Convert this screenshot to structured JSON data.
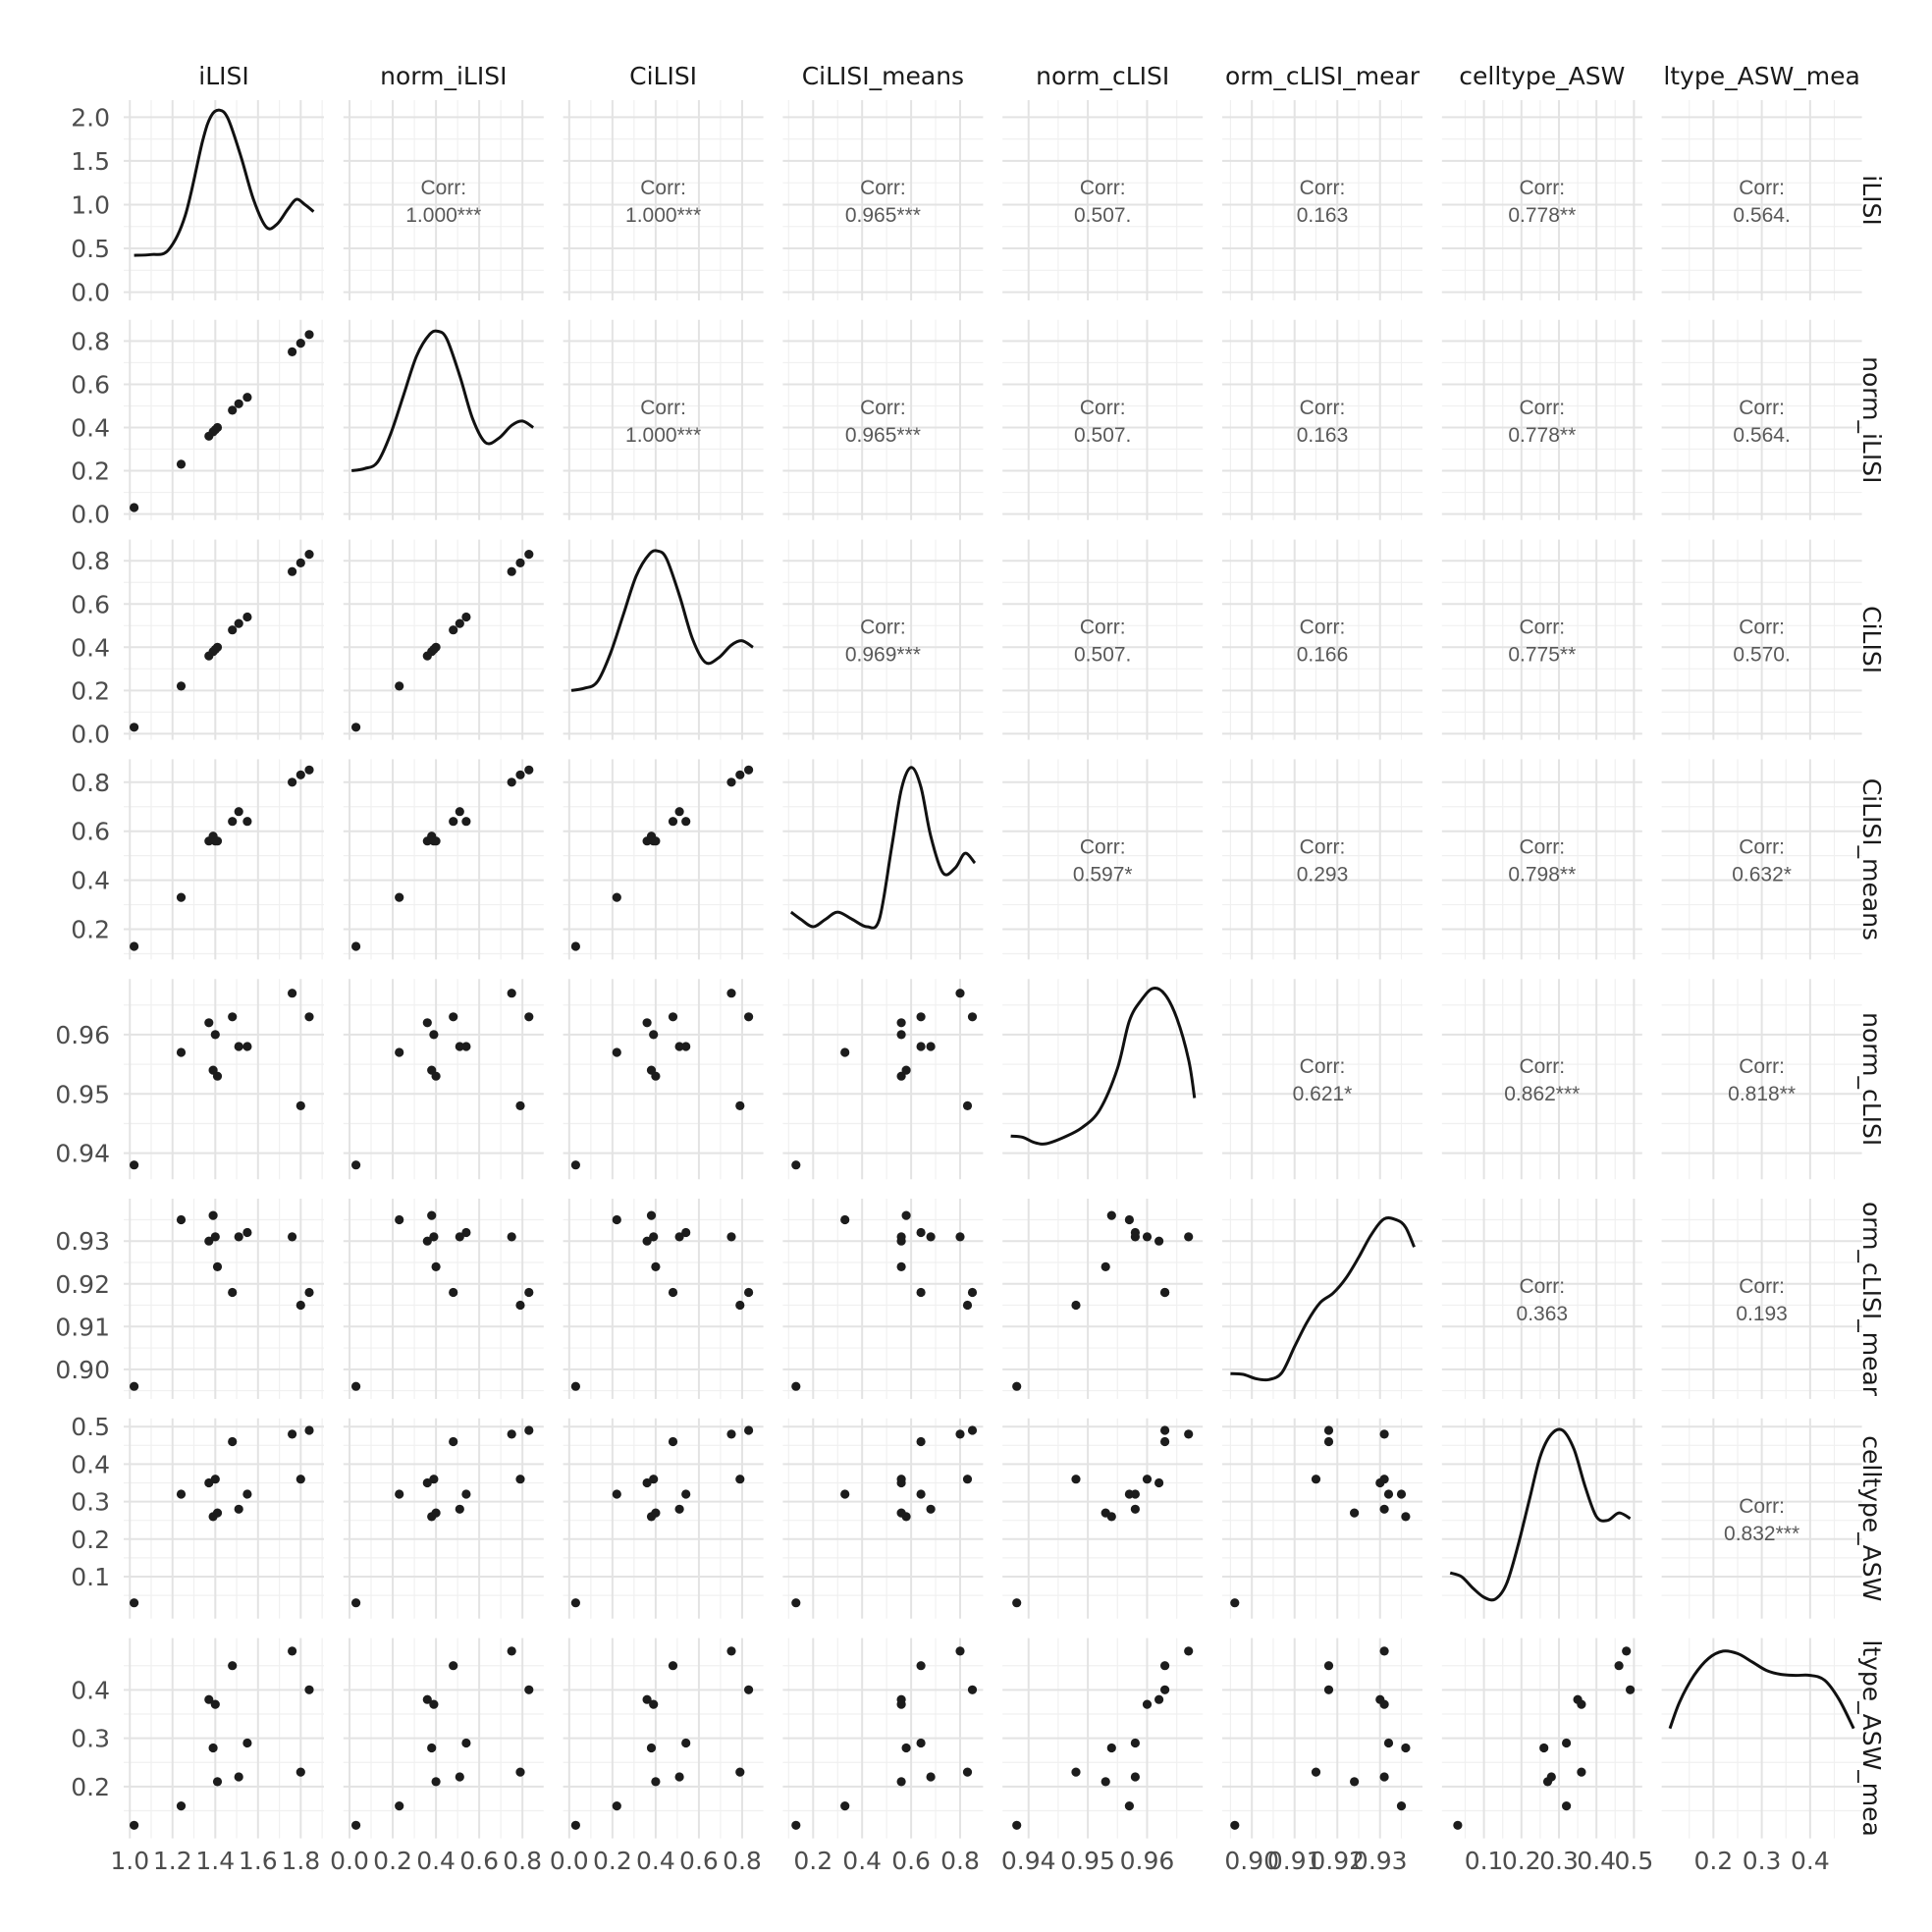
{
  "chart_data": {
    "type": "scatter",
    "variables": [
      "iLISI",
      "norm_iLISI",
      "CiLISI",
      "CiLISI_means",
      "norm_cLISI",
      "norm_cLISI_means",
      "celltype_ASW",
      "celltype_ASW_means"
    ],
    "column_strip_labels": [
      "iLISI",
      "norm_iLISI",
      "CiLISI",
      "CiLISI_means",
      "norm_cLISI",
      "orm_cLISI_mear",
      "celltype_ASW",
      "ltype_ASW_mea"
    ],
    "row_strip_labels": [
      "iLISI",
      "norm_iLISI",
      "CiLISI",
      "CiLISI_means",
      "norm_cLISI",
      "orm_cLISI_mear",
      "celltype_ASW",
      "ltype_ASW_mea"
    ],
    "x_ranges": [
      [
        1.01,
        1.87
      ],
      [
        0.01,
        0.86
      ],
      [
        0.01,
        0.86
      ],
      [
        0.11,
        0.86
      ],
      [
        0.937,
        0.968
      ],
      [
        0.895,
        0.938
      ],
      [
        0.01,
        0.5
      ],
      [
        0.11,
        0.49
      ]
    ],
    "y_ranges": [
      [
        0,
        2.1
      ],
      [
        0.01,
        0.86
      ],
      [
        0.01,
        0.86
      ],
      [
        0.11,
        0.86
      ],
      [
        0.937,
        0.968
      ],
      [
        0.895,
        0.938
      ],
      [
        0.01,
        0.5
      ],
      [
        0.11,
        0.49
      ]
    ],
    "x_tick_labels": [
      [
        [
          1.0,
          "1.0"
        ],
        [
          1.2,
          "1.2"
        ],
        [
          1.4,
          "1.4"
        ],
        [
          1.6,
          "1.6"
        ],
        [
          1.8,
          "1.8"
        ]
      ],
      [
        [
          0.0,
          "0.0"
        ],
        [
          0.2,
          "0.2"
        ],
        [
          0.4,
          "0.4"
        ],
        [
          0.6,
          "0.6"
        ],
        [
          0.8,
          "0.8"
        ]
      ],
      [
        [
          0.0,
          "0.0"
        ],
        [
          0.2,
          "0.2"
        ],
        [
          0.4,
          "0.4"
        ],
        [
          0.6,
          "0.6"
        ],
        [
          0.8,
          "0.8"
        ]
      ],
      [
        [
          0.2,
          "0.2"
        ],
        [
          0.4,
          "0.4"
        ],
        [
          0.6,
          "0.6"
        ],
        [
          0.8,
          "0.8"
        ]
      ],
      [
        [
          0.94,
          "0.94"
        ],
        [
          0.95,
          "0.95"
        ],
        [
          0.96,
          "0.96"
        ]
      ],
      [
        [
          0.9,
          "0.90"
        ],
        [
          0.91,
          "0.91"
        ],
        [
          0.92,
          "0.92"
        ],
        [
          0.93,
          "0.93"
        ]
      ],
      [
        [
          0.1,
          "0.1"
        ],
        [
          0.2,
          "0.2"
        ],
        [
          0.3,
          "0.3"
        ],
        [
          0.4,
          "0.4"
        ],
        [
          0.5,
          "0.5"
        ]
      ],
      [
        [
          0.2,
          "0.2"
        ],
        [
          0.3,
          "0.3"
        ],
        [
          0.4,
          "0.4"
        ]
      ]
    ],
    "y_tick_labels": [
      [
        [
          0.0,
          "0.0"
        ],
        [
          0.5,
          "0.5"
        ],
        [
          1.0,
          "1.0"
        ],
        [
          1.5,
          "1.5"
        ],
        [
          2.0,
          "2.0"
        ]
      ],
      [
        [
          0.0,
          "0.0"
        ],
        [
          0.2,
          "0.2"
        ],
        [
          0.4,
          "0.4"
        ],
        [
          0.6,
          "0.6"
        ],
        [
          0.8,
          "0.8"
        ]
      ],
      [
        [
          0.0,
          "0.0"
        ],
        [
          0.2,
          "0.2"
        ],
        [
          0.4,
          "0.4"
        ],
        [
          0.6,
          "0.6"
        ],
        [
          0.8,
          "0.8"
        ]
      ],
      [
        [
          0.2,
          "0.2"
        ],
        [
          0.4,
          "0.4"
        ],
        [
          0.6,
          "0.6"
        ],
        [
          0.8,
          "0.8"
        ]
      ],
      [
        [
          0.94,
          "0.94"
        ],
        [
          0.95,
          "0.95"
        ],
        [
          0.96,
          "0.96"
        ]
      ],
      [
        [
          0.9,
          "0.90"
        ],
        [
          0.91,
          "0.91"
        ],
        [
          0.92,
          "0.92"
        ],
        [
          0.93,
          "0.93"
        ]
      ],
      [
        [
          0.1,
          "0.1"
        ],
        [
          0.2,
          "0.2"
        ],
        [
          0.3,
          "0.3"
        ],
        [
          0.4,
          "0.4"
        ],
        [
          0.5,
          "0.5"
        ]
      ],
      [
        [
          0.2,
          "0.2"
        ],
        [
          0.3,
          "0.3"
        ],
        [
          0.4,
          "0.4"
        ]
      ]
    ],
    "observations": [
      [
        1.02,
        0.03,
        0.03,
        0.13,
        0.938,
        0.896,
        0.03,
        0.12
      ],
      [
        1.24,
        0.23,
        0.22,
        0.33,
        0.957,
        0.935,
        0.32,
        0.16
      ],
      [
        1.37,
        0.36,
        0.36,
        0.56,
        0.962,
        0.93,
        0.35,
        0.38
      ],
      [
        1.39,
        0.38,
        0.38,
        0.58,
        0.954,
        0.936,
        0.26,
        0.28
      ],
      [
        1.4,
        0.39,
        0.39,
        0.56,
        0.96,
        0.931,
        0.36,
        0.37
      ],
      [
        1.41,
        0.4,
        0.4,
        0.56,
        0.953,
        0.924,
        0.27,
        0.21
      ],
      [
        1.48,
        0.48,
        0.48,
        0.64,
        0.963,
        0.918,
        0.46,
        0.45
      ],
      [
        1.51,
        0.51,
        0.51,
        0.68,
        0.958,
        0.931,
        0.28,
        0.22
      ],
      [
        1.55,
        0.54,
        0.54,
        0.64,
        0.958,
        0.932,
        0.32,
        0.29
      ],
      [
        1.76,
        0.75,
        0.75,
        0.8,
        0.967,
        0.931,
        0.48,
        0.48
      ],
      [
        1.8,
        0.79,
        0.79,
        0.83,
        0.948,
        0.915,
        0.36,
        0.23
      ],
      [
        1.84,
        0.83,
        0.83,
        0.85,
        0.963,
        0.918,
        0.49,
        0.4
      ]
    ],
    "correlations": [
      {
        "row": 0,
        "col": 1,
        "label": "Corr:",
        "value": "1.000***"
      },
      {
        "row": 0,
        "col": 2,
        "label": "Corr:",
        "value": "1.000***"
      },
      {
        "row": 0,
        "col": 3,
        "label": "Corr:",
        "value": "0.965***"
      },
      {
        "row": 0,
        "col": 4,
        "label": "Corr:",
        "value": "0.507."
      },
      {
        "row": 0,
        "col": 5,
        "label": "Corr:",
        "value": "0.163"
      },
      {
        "row": 0,
        "col": 6,
        "label": "Corr:",
        "value": "0.778**"
      },
      {
        "row": 0,
        "col": 7,
        "label": "Corr:",
        "value": "0.564."
      },
      {
        "row": 1,
        "col": 2,
        "label": "Corr:",
        "value": "1.000***"
      },
      {
        "row": 1,
        "col": 3,
        "label": "Corr:",
        "value": "0.965***"
      },
      {
        "row": 1,
        "col": 4,
        "label": "Corr:",
        "value": "0.507."
      },
      {
        "row": 1,
        "col": 5,
        "label": "Corr:",
        "value": "0.163"
      },
      {
        "row": 1,
        "col": 6,
        "label": "Corr:",
        "value": "0.778**"
      },
      {
        "row": 1,
        "col": 7,
        "label": "Corr:",
        "value": "0.564."
      },
      {
        "row": 2,
        "col": 3,
        "label": "Corr:",
        "value": "0.969***"
      },
      {
        "row": 2,
        "col": 4,
        "label": "Corr:",
        "value": "0.507."
      },
      {
        "row": 2,
        "col": 5,
        "label": "Corr:",
        "value": "0.166"
      },
      {
        "row": 2,
        "col": 6,
        "label": "Corr:",
        "value": "0.775**"
      },
      {
        "row": 2,
        "col": 7,
        "label": "Corr:",
        "value": "0.570."
      },
      {
        "row": 3,
        "col": 4,
        "label": "Corr:",
        "value": "0.597*"
      },
      {
        "row": 3,
        "col": 5,
        "label": "Corr:",
        "value": "0.293"
      },
      {
        "row": 3,
        "col": 6,
        "label": "Corr:",
        "value": "0.798**"
      },
      {
        "row": 3,
        "col": 7,
        "label": "Corr:",
        "value": "0.632*"
      },
      {
        "row": 4,
        "col": 5,
        "label": "Corr:",
        "value": "0.621*"
      },
      {
        "row": 4,
        "col": 6,
        "label": "Corr:",
        "value": "0.862***"
      },
      {
        "row": 4,
        "col": 7,
        "label": "Corr:",
        "value": "0.818**"
      },
      {
        "row": 5,
        "col": 6,
        "label": "Corr:",
        "value": "0.363"
      },
      {
        "row": 5,
        "col": 7,
        "label": "Corr:",
        "value": "0.193"
      },
      {
        "row": 6,
        "col": 7,
        "label": "Corr:",
        "value": "0.832***"
      }
    ],
    "densities": [
      {
        "x": [
          1.02,
          1.1,
          1.18,
          1.26,
          1.34,
          1.38,
          1.42,
          1.46,
          1.52,
          1.58,
          1.64,
          1.69,
          1.74,
          1.78,
          1.82,
          1.86
        ],
        "y": [
          0.42,
          0.43,
          0.48,
          0.88,
          1.72,
          2.01,
          2.08,
          1.98,
          1.55,
          1.05,
          0.74,
          0.78,
          0.95,
          1.06,
          1.0,
          0.92
        ]
      },
      {
        "x": [
          0.01,
          0.07,
          0.13,
          0.19,
          0.25,
          0.31,
          0.37,
          0.41,
          0.45,
          0.51,
          0.57,
          0.63,
          0.69,
          0.75,
          0.8,
          0.85
        ],
        "y": [
          0.2,
          0.21,
          0.24,
          0.37,
          0.55,
          0.73,
          0.83,
          0.845,
          0.81,
          0.64,
          0.44,
          0.33,
          0.35,
          0.41,
          0.43,
          0.4
        ]
      },
      {
        "x": [
          0.01,
          0.07,
          0.13,
          0.19,
          0.25,
          0.31,
          0.37,
          0.41,
          0.45,
          0.51,
          0.57,
          0.63,
          0.69,
          0.75,
          0.8,
          0.85
        ],
        "y": [
          0.2,
          0.21,
          0.24,
          0.37,
          0.55,
          0.73,
          0.83,
          0.845,
          0.81,
          0.64,
          0.44,
          0.33,
          0.35,
          0.41,
          0.43,
          0.4
        ]
      },
      {
        "x": [
          0.11,
          0.15,
          0.2,
          0.25,
          0.3,
          0.36,
          0.42,
          0.47,
          0.52,
          0.56,
          0.6,
          0.64,
          0.68,
          0.73,
          0.78,
          0.82,
          0.86
        ],
        "y": [
          0.27,
          0.24,
          0.21,
          0.24,
          0.27,
          0.24,
          0.21,
          0.24,
          0.53,
          0.77,
          0.86,
          0.78,
          0.58,
          0.43,
          0.45,
          0.51,
          0.47
        ]
      },
      {
        "x": [
          0.937,
          0.939,
          0.941,
          0.943,
          0.946,
          0.949,
          0.952,
          0.955,
          0.957,
          0.959,
          0.961,
          0.963,
          0.965,
          0.967,
          0.968
        ],
        "y": [
          0.9429,
          0.9427,
          0.9418,
          0.9416,
          0.9427,
          0.9443,
          0.9473,
          0.9543,
          0.9623,
          0.9658,
          0.9678,
          0.9668,
          0.9628,
          0.9558,
          0.9493
        ]
      },
      {
        "x": [
          0.895,
          0.898,
          0.901,
          0.904,
          0.907,
          0.91,
          0.913,
          0.916,
          0.919,
          0.922,
          0.925,
          0.928,
          0.931,
          0.934,
          0.936,
          0.938
        ],
        "y": [
          0.899,
          0.8988,
          0.8978,
          0.8976,
          0.8992,
          0.9053,
          0.9112,
          0.9156,
          0.9178,
          0.9213,
          0.9262,
          0.9316,
          0.9352,
          0.9349,
          0.9332,
          0.9286
        ]
      },
      {
        "x": [
          0.01,
          0.04,
          0.07,
          0.1,
          0.13,
          0.16,
          0.19,
          0.22,
          0.25,
          0.28,
          0.31,
          0.34,
          0.37,
          0.4,
          0.43,
          0.46,
          0.49
        ],
        "y": [
          0.11,
          0.1,
          0.07,
          0.045,
          0.04,
          0.08,
          0.18,
          0.3,
          0.42,
          0.48,
          0.49,
          0.44,
          0.34,
          0.26,
          0.25,
          0.27,
          0.255
        ]
      },
      {
        "x": [
          0.11,
          0.13,
          0.16,
          0.19,
          0.22,
          0.25,
          0.28,
          0.31,
          0.34,
          0.37,
          0.4,
          0.43,
          0.46,
          0.49
        ],
        "y": [
          0.32,
          0.375,
          0.43,
          0.465,
          0.48,
          0.475,
          0.458,
          0.44,
          0.432,
          0.43,
          0.43,
          0.42,
          0.38,
          0.32
        ]
      }
    ]
  }
}
